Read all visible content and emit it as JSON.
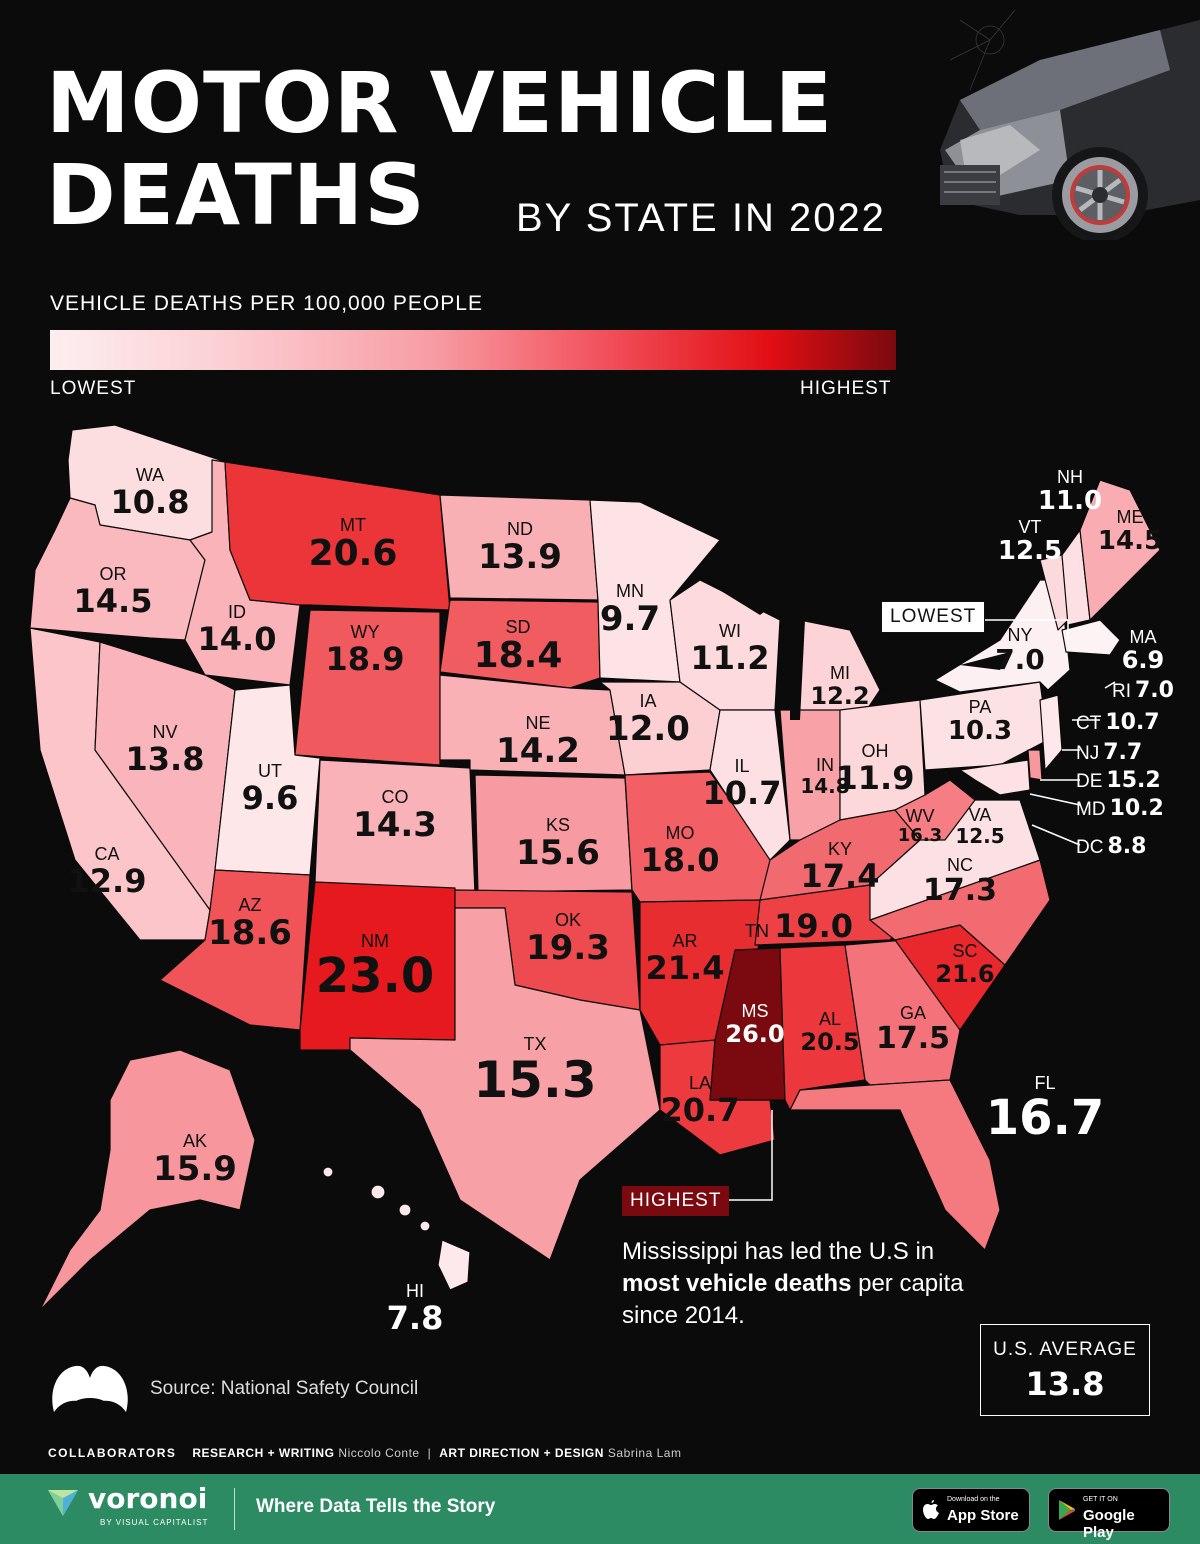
{
  "title_line1": "MOTOR VEHICLE",
  "title_line2": "DEATHS",
  "subtitle": "BY STATE IN 2022",
  "legend": {
    "title": "VEHICLE DEATHS PER 100,000 PEOPLE",
    "low": "LOWEST",
    "high": "HIGHEST",
    "colors": [
      "#fdeef0",
      "#fbd0d4",
      "#f79da4",
      "#f2525d",
      "#e20e14",
      "#7a0a0f"
    ]
  },
  "states": {
    "WA": {
      "abbr": "WA",
      "value": "10.8"
    },
    "OR": {
      "abbr": "OR",
      "value": "14.5"
    },
    "CA": {
      "abbr": "CA",
      "value": "12.9"
    },
    "ID": {
      "abbr": "ID",
      "value": "14.0"
    },
    "NV": {
      "abbr": "NV",
      "value": "13.8"
    },
    "MT": {
      "abbr": "MT",
      "value": "20.6"
    },
    "WY": {
      "abbr": "WY",
      "value": "18.9"
    },
    "UT": {
      "abbr": "UT",
      "value": "9.6"
    },
    "AZ": {
      "abbr": "AZ",
      "value": "18.6"
    },
    "CO": {
      "abbr": "CO",
      "value": "14.3"
    },
    "NM": {
      "abbr": "NM",
      "value": "23.0"
    },
    "ND": {
      "abbr": "ND",
      "value": "13.9"
    },
    "SD": {
      "abbr": "SD",
      "value": "18.4"
    },
    "NE": {
      "abbr": "NE",
      "value": "14.2"
    },
    "KS": {
      "abbr": "KS",
      "value": "15.6"
    },
    "OK": {
      "abbr": "OK",
      "value": "19.3"
    },
    "TX": {
      "abbr": "TX",
      "value": "15.3"
    },
    "MN": {
      "abbr": "MN",
      "value": "9.7"
    },
    "IA": {
      "abbr": "IA",
      "value": "12.0"
    },
    "MO": {
      "abbr": "MO",
      "value": "18.0"
    },
    "AR": {
      "abbr": "AR",
      "value": "21.4"
    },
    "LA": {
      "abbr": "LA",
      "value": "20.7"
    },
    "WI": {
      "abbr": "WI",
      "value": "11.2"
    },
    "IL": {
      "abbr": "IL",
      "value": "10.7"
    },
    "MS": {
      "abbr": "MS",
      "value": "26.0"
    },
    "MI": {
      "abbr": "MI",
      "value": "12.2"
    },
    "IN": {
      "abbr": "IN",
      "value": "14.8"
    },
    "OH": {
      "abbr": "OH",
      "value": "11.9"
    },
    "KY": {
      "abbr": "KY",
      "value": "17.4"
    },
    "TN": {
      "abbr": "TN",
      "value": "19.0"
    },
    "AL": {
      "abbr": "AL",
      "value": "20.5"
    },
    "GA": {
      "abbr": "GA",
      "value": "17.5"
    },
    "FL": {
      "abbr": "FL",
      "value": "16.7"
    },
    "SC": {
      "abbr": "SC",
      "value": "21.6"
    },
    "NC": {
      "abbr": "NC",
      "value": "17.3"
    },
    "VA": {
      "abbr": "VA",
      "value": "12.5"
    },
    "WV": {
      "abbr": "WV",
      "value": "16.3"
    },
    "PA": {
      "abbr": "PA",
      "value": "10.3"
    },
    "NY": {
      "abbr": "NY",
      "value": "7.0"
    },
    "VT": {
      "abbr": "VT",
      "value": "12.5"
    },
    "NH": {
      "abbr": "NH",
      "value": "11.0"
    },
    "ME": {
      "abbr": "ME",
      "value": "14.5"
    },
    "MA": {
      "abbr": "MA",
      "value": "6.9"
    },
    "RI": {
      "abbr": "RI",
      "value": "7.0"
    },
    "CT": {
      "abbr": "CT",
      "value": "10.7"
    },
    "NJ": {
      "abbr": "NJ",
      "value": "7.7"
    },
    "DE": {
      "abbr": "DE",
      "value": "15.2"
    },
    "MD": {
      "abbr": "MD",
      "value": "10.2"
    },
    "DC": {
      "abbr": "DC",
      "value": "8.8"
    },
    "AK": {
      "abbr": "AK",
      "value": "15.9"
    },
    "HI": {
      "abbr": "HI",
      "value": "7.8"
    }
  },
  "callouts": {
    "lowest": "LOWEST",
    "highest": "HIGHEST"
  },
  "note": {
    "part1": "Mississippi has led the U.S in ",
    "bold": "most vehicle deaths",
    "part2": " per capita since 2014."
  },
  "us_average": {
    "label": "U.S. AVERAGE",
    "value": "13.8"
  },
  "source": "Source: National Safety Council",
  "credits": {
    "heading": "COLLABORATORS",
    "research_label": "RESEARCH + WRITING",
    "research_name": "Niccolo Conte",
    "design_label": "ART DIRECTION + DESIGN",
    "design_name": "Sabrina Lam"
  },
  "footer": {
    "brand": "voronoi",
    "brand_sub": "BY VISUAL CAPITALIST",
    "tagline": "Where Data Tells the Story",
    "appstore_small": "Download on the",
    "appstore_big": "App Store",
    "googleplay_small": "GET IT ON",
    "googleplay_big": "Google Play"
  }
}
